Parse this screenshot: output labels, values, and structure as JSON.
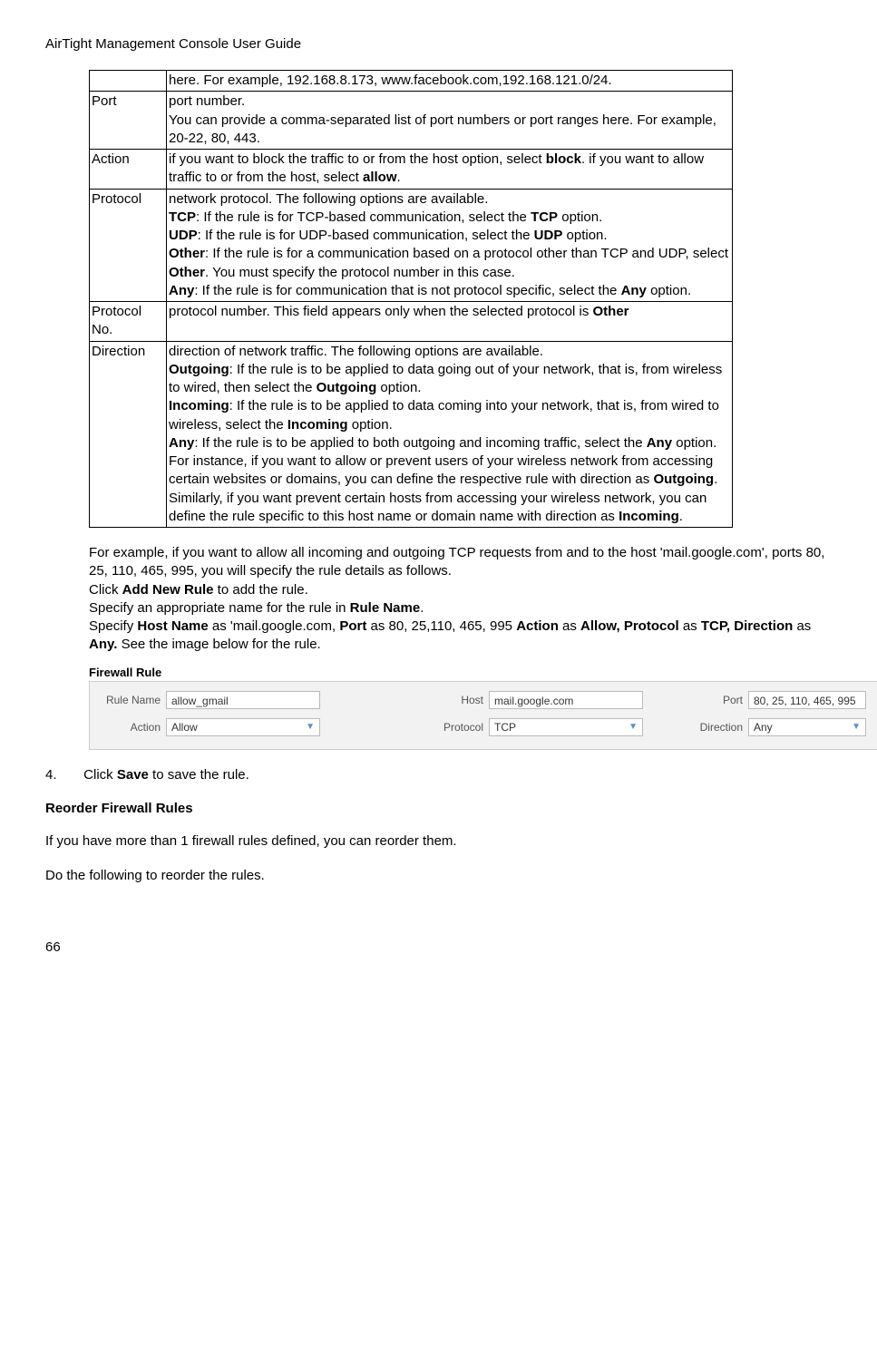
{
  "header": "AirTight Management Console User Guide",
  "table": {
    "rows": [
      {
        "field": "",
        "desc_parts": [
          {
            "t": "here. For example, 192.168.8.173, www.facebook.com,192.168.121.0/24."
          }
        ]
      },
      {
        "field": "Port",
        "desc_parts": [
          {
            "t": "port number."
          },
          {
            "br": true
          },
          {
            "t": "You can provide a comma-separated list of port numbers or port ranges here. For example, 20-22, 80, 443."
          }
        ]
      },
      {
        "field": "Action",
        "desc_parts": [
          {
            "t": "if you want to block the traffic to or from the host option, select "
          },
          {
            "t": "block",
            "b": true
          },
          {
            "t": ". if you want to allow traffic to or from the host, select "
          },
          {
            "t": "allow",
            "b": true
          },
          {
            "t": "."
          }
        ]
      },
      {
        "field": "Protocol",
        "desc_parts": [
          {
            "t": "network protocol. The following options are available."
          },
          {
            "br": true
          },
          {
            "t": "TCP",
            "b": true
          },
          {
            "t": ": If the rule is for TCP-based communication, select the "
          },
          {
            "t": "TCP",
            "b": true
          },
          {
            "t": " option."
          },
          {
            "br": true
          },
          {
            "t": "UDP",
            "b": true
          },
          {
            "t": ": If the rule is for UDP-based communication, select the "
          },
          {
            "t": "UDP",
            "b": true
          },
          {
            "t": " option."
          },
          {
            "br": true
          },
          {
            "t": "Other",
            "b": true
          },
          {
            "t": ": If the rule is for a communication based on a protocol other than TCP and UDP, select "
          },
          {
            "t": "Other",
            "b": true
          },
          {
            "t": ". You must specify the protocol number in this case."
          },
          {
            "br": true
          },
          {
            "t": "Any",
            "b": true
          },
          {
            "t": ": If the rule is for communication that is not protocol specific, select the "
          },
          {
            "t": "Any",
            "b": true
          },
          {
            "t": " option."
          }
        ]
      },
      {
        "field": "Protocol No.",
        "desc_parts": [
          {
            "t": "protocol number. This field appears only when the selected protocol is "
          },
          {
            "t": "Other",
            "b": true
          }
        ]
      },
      {
        "field": "Direction",
        "desc_parts": [
          {
            "t": "direction of network traffic. The following options are available."
          },
          {
            "br": true
          },
          {
            "t": "Outgoing",
            "b": true
          },
          {
            "t": ": If the rule is to be applied to data going out of your network, that is, from wireless to wired, then select the "
          },
          {
            "t": "Outgoing",
            "b": true
          },
          {
            "t": " option."
          },
          {
            "br": true
          },
          {
            "t": "Incoming",
            "b": true
          },
          {
            "t": ": If the rule is to be applied to data coming into your network, that is, from wired to wireless, select the "
          },
          {
            "t": "Incoming",
            "b": true
          },
          {
            "t": " option."
          },
          {
            "br": true
          },
          {
            "t": "Any",
            "b": true
          },
          {
            "t": ":  If the rule is to be applied to both outgoing and incoming traffic, select the "
          },
          {
            "t": "Any",
            "b": true
          },
          {
            "t": " option."
          },
          {
            "br": true
          },
          {
            "t": "For instance, if you want to allow or prevent users of your wireless network from accessing certain websites or domains, you can define the respective rule with direction as "
          },
          {
            "t": "Outgoing",
            "b": true
          },
          {
            "t": ". Similarly, if you want prevent certain hosts from accessing your wireless network, you can define the rule specific to this host name or domain name with direction as "
          },
          {
            "t": "Incoming",
            "b": true
          },
          {
            "t": "."
          }
        ]
      }
    ]
  },
  "example_intro_parts": [
    {
      "t": "For example, if you want to allow all incoming and outgoing TCP requests from and to the host 'mail.google.com', ports 80, 25, 110, 465, 995, you will specify the rule details as follows."
    },
    {
      "br": true
    },
    {
      "t": "Click "
    },
    {
      "t": "Add New Rule",
      "b": true
    },
    {
      "t": " to add the rule."
    },
    {
      "br": true
    },
    {
      "t": "Specify an appropriate name for the rule in "
    },
    {
      "t": "Rule Name",
      "b": true
    },
    {
      "t": "."
    },
    {
      "br": true
    },
    {
      "t": "Specify "
    },
    {
      "t": "Host Name",
      "b": true
    },
    {
      "t": " as 'mail.google.com, "
    },
    {
      "t": "Port",
      "b": true
    },
    {
      "t": " as 80, 25,110, 465, 995 "
    },
    {
      "t": "Action",
      "b": true
    },
    {
      "t": " as "
    },
    {
      "t": "Allow, Protocol",
      "b": true
    },
    {
      "t": " as "
    },
    {
      "t": "TCP, Direction",
      "b": true
    },
    {
      "t": " as "
    },
    {
      "t": "Any.",
      "b": true
    },
    {
      "t": "  See the image below for the rule."
    }
  ],
  "fw": {
    "title": "Firewall Rule",
    "labels": {
      "rule_name": "Rule Name",
      "host": "Host",
      "port": "Port",
      "action": "Action",
      "protocol": "Protocol",
      "direction": "Direction"
    },
    "values": {
      "rule_name": "allow_gmail",
      "host": "mail.google.com",
      "port": "80, 25, 110, 465, 995",
      "action": "Allow",
      "protocol": "TCP",
      "direction": "Any"
    }
  },
  "step4_num": "4.",
  "step4_parts": [
    {
      "t": "Click "
    },
    {
      "t": "Save",
      "b": true
    },
    {
      "t": " to save the rule."
    }
  ],
  "section2": "Reorder Firewall Rules",
  "body2": "If you have more than 1 firewall rules defined, you can reorder them.",
  "body3": "Do the following to reorder the rules.",
  "page_number": "66"
}
